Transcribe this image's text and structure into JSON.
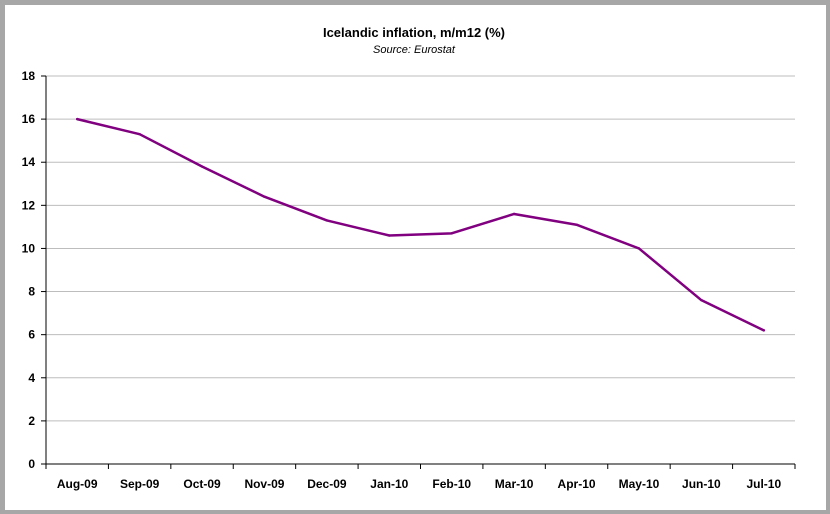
{
  "chart_data": {
    "type": "line",
    "title": "Icelandic inflation, m/m12 (%)",
    "subtitle": "Source: Eurostat",
    "categories": [
      "Aug-09",
      "Sep-09",
      "Oct-09",
      "Nov-09",
      "Dec-09",
      "Jan-10",
      "Feb-10",
      "Mar-10",
      "Apr-10",
      "May-10",
      "Jun-10",
      "Jul-10"
    ],
    "series": [
      {
        "values": [
          16.0,
          15.3,
          13.8,
          12.4,
          11.3,
          10.6,
          10.7,
          11.6,
          11.1,
          10.0,
          7.6,
          6.2
        ]
      }
    ],
    "ylim": [
      0,
      18
    ],
    "yticks": [
      0,
      2,
      4,
      6,
      8,
      10,
      12,
      14,
      16,
      18
    ],
    "grid": true,
    "line_color": "#800080",
    "grid_color": "#bdbdbd",
    "frame_color": "#a7a7a7"
  }
}
